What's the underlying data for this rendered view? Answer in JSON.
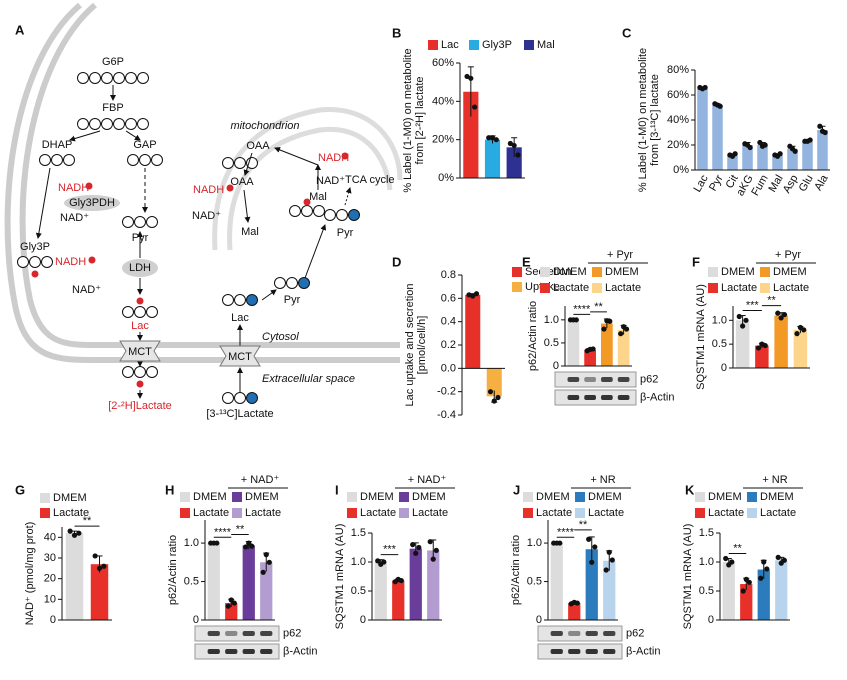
{
  "diagram": {
    "panel": "A",
    "labels": [
      "G6P",
      "FBP",
      "DHAP",
      "GAP",
      "NADH",
      "Gly3PDH",
      "NAD⁺",
      "Gly3P",
      "Pyr",
      "LDH",
      "NADH",
      "NAD⁺",
      "Lac",
      "MCT",
      "[2-²H]Lactate",
      "mitochondrion",
      "OAA",
      "OAA",
      "NADH",
      "NADH",
      "NAD⁺",
      "NAD⁺",
      "Mal",
      "Mal",
      "TCA cycle",
      "Pyr",
      "Pyr",
      "Lac",
      "MCT",
      "Cytosol",
      "Extracellular space",
      "[3-¹³C]Lactate"
    ]
  },
  "chart_data": [
    {
      "type": "bar",
      "panel": "B",
      "ylabel": [
        "% Label (1-M0) on metabolite",
        "from [2-²H] lactate"
      ],
      "legend": "top",
      "categories": [
        "Lac",
        "Gly3P",
        "Mal"
      ],
      "colors": [
        "#e8302a",
        "#29abe2",
        "#2e3192"
      ],
      "values": [
        45,
        20,
        16
      ],
      "errors": [
        13,
        2,
        5
      ],
      "points": [
        [
          53,
          52,
          37
        ],
        [
          21,
          21,
          20
        ],
        [
          18,
          17,
          12
        ]
      ],
      "ylim": [
        0,
        60
      ],
      "yticks": [
        {
          "value": 0,
          "label": "0%"
        },
        {
          "value": 20,
          "label": "20%"
        },
        {
          "value": 40,
          "label": "40%"
        },
        {
          "value": 60,
          "label": "60%"
        }
      ]
    },
    {
      "type": "bar",
      "panel": "C",
      "ylabel": [
        "% Label (1-M0) on metabolite",
        "from [3-¹³C] lactate"
      ],
      "legend": "none",
      "categories": [
        "Lac",
        "Pyr",
        "Cit",
        "aKG",
        "Fum",
        "Mal",
        "Asp",
        "Glu",
        "Ala"
      ],
      "colors": [
        "#92b4de",
        "#92b4de",
        "#92b4de",
        "#92b4de",
        "#92b4de",
        "#92b4de",
        "#92b4de",
        "#92b4de",
        "#92b4de"
      ],
      "values": [
        65,
        52,
        12,
        20,
        20,
        12,
        17,
        23,
        32
      ],
      "errors": [
        1,
        1,
        1,
        2,
        2,
        1,
        2,
        1,
        3
      ],
      "points": [
        [
          66,
          65,
          66
        ],
        [
          53,
          52,
          51
        ],
        [
          12,
          11,
          13
        ],
        [
          21,
          20,
          18
        ],
        [
          22,
          19,
          20
        ],
        [
          12,
          11,
          13
        ],
        [
          19,
          17,
          15
        ],
        [
          23,
          23,
          24
        ],
        [
          35,
          31,
          30
        ]
      ],
      "ylim": [
        0,
        80
      ],
      "yticks": [
        {
          "value": 0,
          "label": "0%"
        },
        {
          "value": 20,
          "label": "20%"
        },
        {
          "value": 40,
          "label": "40%"
        },
        {
          "value": 60,
          "label": "60%"
        },
        {
          "value": 80,
          "label": "80%"
        }
      ]
    },
    {
      "type": "bar",
      "panel": "D",
      "ylabel": [
        "Lac uptake and secretion",
        "[pmol/cell/h]"
      ],
      "legend": "stack",
      "categories": [
        "Secretion",
        "Uptake"
      ],
      "colors": [
        "#e8302a",
        "#f5b041"
      ],
      "values": [
        0.63,
        -0.24
      ],
      "errors": [
        0.01,
        0.05
      ],
      "points": [
        [
          0.63,
          0.62,
          0.64
        ],
        [
          -0.2,
          -0.28,
          -0.25
        ]
      ],
      "ylim": [
        -0.4,
        0.8
      ],
      "yticks": [
        -0.4,
        -0.2,
        {
          "value": 0,
          "label": "0.0"
        },
        0.2,
        0.4,
        0.6,
        0.8
      ]
    },
    {
      "type": "bar",
      "panel": "E",
      "ylabel": [
        "p62/Actin ratio"
      ],
      "legend": "grid",
      "group_label": "+ Pyr",
      "blot": [
        "p62",
        "β-Actin"
      ],
      "categories": [
        "DMEM",
        "Lactate",
        "DMEM",
        "Lactate"
      ],
      "colors": [
        "#dcdcdc",
        "#e8302a",
        "#f39a26",
        "#fcd58a"
      ],
      "values": [
        1.0,
        0.35,
        0.92,
        0.78
      ],
      "errors": [
        0.01,
        0.03,
        0.1,
        0.1
      ],
      "points": [
        [
          1.0,
          1.0,
          1.0
        ],
        [
          0.33,
          0.36,
          0.37
        ],
        [
          0.8,
          0.98,
          0.97
        ],
        [
          0.7,
          0.85,
          0.8
        ]
      ],
      "ylim": [
        0,
        1.3
      ],
      "yticks": [
        0,
        0.5,
        {
          "value": 1,
          "label": "1.0"
        }
      ],
      "significance": [
        "****",
        "**"
      ]
    },
    {
      "type": "bar",
      "panel": "F",
      "ylabel": [
        "SQSTM1 mRNA (AU)"
      ],
      "legend": "grid",
      "group_label": "+ Pyr",
      "categories": [
        "DMEM",
        "Lactate",
        "DMEM",
        "Lactate"
      ],
      "colors": [
        "#dcdcdc",
        "#e8302a",
        "#f39a26",
        "#fcd58a"
      ],
      "values": [
        1.0,
        0.47,
        1.1,
        0.8
      ],
      "errors": [
        0.1,
        0.05,
        0.06,
        0.07
      ],
      "points": [
        [
          1.08,
          0.88,
          1.0
        ],
        [
          0.42,
          0.5,
          0.47
        ],
        [
          1.15,
          1.05,
          1.12
        ],
        [
          0.72,
          0.85,
          0.8
        ]
      ],
      "ylim": [
        0,
        1.3
      ],
      "yticks": [
        0,
        0.5,
        {
          "value": 1,
          "label": "1.0"
        }
      ],
      "significance": [
        "***",
        "**"
      ]
    },
    {
      "type": "bar",
      "panel": "G",
      "ylabel": [
        "NAD⁺ (pmol/mg prot)"
      ],
      "legend": "stack",
      "categories": [
        "DMEM",
        "Lactate"
      ],
      "colors": [
        "#dcdcdc",
        "#e8302a"
      ],
      "values": [
        42,
        27
      ],
      "errors": [
        1,
        4
      ],
      "points": [
        [
          43,
          41,
          42
        ],
        [
          31,
          25,
          26
        ]
      ],
      "ylim": [
        0,
        45
      ],
      "yticks": [
        0,
        10,
        20,
        30,
        40
      ],
      "significance": [
        "**"
      ]
    },
    {
      "type": "bar",
      "panel": "H",
      "ylabel": [
        "p62/Actin ratio"
      ],
      "legend": "grid",
      "group_label": "+ NAD⁺",
      "blot": [
        "p62",
        "β-Actin"
      ],
      "categories": [
        "DMEM",
        "Lactate",
        "DMEM",
        "Lactate"
      ],
      "colors": [
        "#dcdcdc",
        "#e8302a",
        "#6a3d9a",
        "#b39ccf"
      ],
      "values": [
        1.0,
        0.22,
        0.97,
        0.75
      ],
      "errors": [
        0.01,
        0.05,
        0.05,
        0.12
      ],
      "points": [
        [
          1.0,
          1.0,
          1.0
        ],
        [
          0.18,
          0.26,
          0.22
        ],
        [
          0.95,
          1.0,
          0.96
        ],
        [
          0.62,
          0.85,
          0.75
        ]
      ],
      "ylim": [
        0,
        1.3
      ],
      "yticks": [
        0,
        0.5,
        {
          "value": 1,
          "label": "1.0"
        }
      ],
      "significance": [
        "****",
        "**"
      ]
    },
    {
      "type": "bar",
      "panel": "I",
      "ylabel": [
        "SQSTM1 mRNA (AU)"
      ],
      "legend": "grid",
      "group_label": "+ NAD⁺",
      "categories": [
        "DMEM",
        "Lactate",
        "DMEM",
        "Lactate"
      ],
      "colors": [
        "#dcdcdc",
        "#e8302a",
        "#6a3d9a",
        "#b39ccf"
      ],
      "values": [
        1.0,
        0.68,
        1.23,
        1.2
      ],
      "errors": [
        0.04,
        0.03,
        0.1,
        0.18
      ],
      "points": [
        [
          1.02,
          0.96,
          1.0
        ],
        [
          0.66,
          0.7,
          0.68
        ],
        [
          1.3,
          1.15,
          1.25
        ],
        [
          1.35,
          1.05,
          1.2
        ]
      ],
      "ylim": [
        0,
        1.5
      ],
      "yticks": [
        0,
        0.5,
        {
          "value": 1,
          "label": "1.0"
        },
        1.5
      ],
      "significance": [
        "***"
      ]
    },
    {
      "type": "bar",
      "panel": "J",
      "ylabel": [
        "p62/Actin ratio"
      ],
      "legend": "grid",
      "group_label": "+ NR",
      "blot": [
        "p62",
        "β-Actin"
      ],
      "categories": [
        "DMEM",
        "Lactate",
        "DMEM",
        "Lactate"
      ],
      "colors": [
        "#dcdcdc",
        "#e8302a",
        "#2b7bbd",
        "#b8d4ec"
      ],
      "values": [
        1.0,
        0.22,
        0.92,
        0.77
      ],
      "errors": [
        0.01,
        0.02,
        0.16,
        0.13
      ],
      "points": [
        [
          1.0,
          1.0,
          1.0
        ],
        [
          0.21,
          0.23,
          0.22
        ],
        [
          1.05,
          0.75,
          0.95
        ],
        [
          0.65,
          0.88,
          0.78
        ]
      ],
      "ylim": [
        0,
        1.3
      ],
      "yticks": [
        0,
        0.5,
        {
          "value": 1,
          "label": "1.0"
        }
      ],
      "significance": [
        "****",
        "**"
      ]
    },
    {
      "type": "bar",
      "panel": "K",
      "ylabel": [
        "SQSTM1 mRNA (AU)"
      ],
      "legend": "grid",
      "group_label": "+ NR",
      "categories": [
        "DMEM",
        "Lactate",
        "DMEM",
        "Lactate"
      ],
      "colors": [
        "#dcdcdc",
        "#e8302a",
        "#2b7bbd",
        "#b8d4ec"
      ],
      "values": [
        1.0,
        0.62,
        0.87,
        1.03
      ],
      "errors": [
        0.06,
        0.1,
        0.16,
        0.05
      ],
      "points": [
        [
          1.06,
          0.95,
          1.0
        ],
        [
          0.5,
          0.7,
          0.65
        ],
        [
          0.72,
          1.0,
          0.88
        ],
        [
          1.08,
          0.98,
          1.03
        ]
      ],
      "ylim": [
        0,
        1.5
      ],
      "yticks": [
        0,
        0.5,
        {
          "value": 1,
          "label": "1.0"
        },
        1.5
      ],
      "significance": [
        "**"
      ]
    }
  ]
}
